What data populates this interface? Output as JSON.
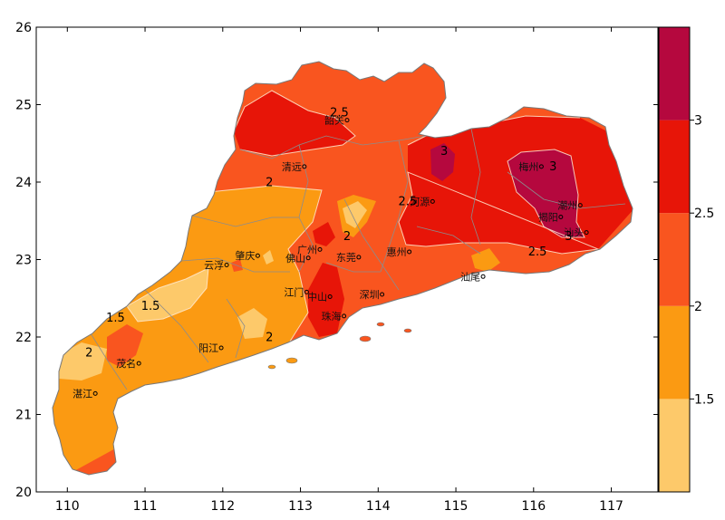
{
  "map": {
    "lon_ticks": [
      "110",
      "111",
      "112",
      "113",
      "114",
      "115",
      "116",
      "117"
    ],
    "lat_ticks": [
      "20",
      "21",
      "22",
      "23",
      "24",
      "25",
      "26"
    ],
    "lon_range": [
      109.6,
      117.6
    ],
    "lat_range": [
      20,
      26
    ],
    "cities": [
      {
        "name": "韶关",
        "lon": 113.6,
        "lat": 24.8
      },
      {
        "name": "清远",
        "lon": 113.05,
        "lat": 24.2
      },
      {
        "name": "河源",
        "lon": 114.7,
        "lat": 23.75
      },
      {
        "name": "梅州",
        "lon": 116.1,
        "lat": 24.2
      },
      {
        "name": "潮州",
        "lon": 116.6,
        "lat": 23.7
      },
      {
        "name": "揭阳",
        "lon": 116.35,
        "lat": 23.55
      },
      {
        "name": "汕头",
        "lon": 116.68,
        "lat": 23.35
      },
      {
        "name": "肇庆",
        "lon": 112.45,
        "lat": 23.05
      },
      {
        "name": "广州",
        "lon": 113.25,
        "lat": 23.13
      },
      {
        "name": "惠州",
        "lon": 114.4,
        "lat": 23.1
      },
      {
        "name": "云浮",
        "lon": 112.05,
        "lat": 22.93
      },
      {
        "name": "佛山",
        "lon": 113.1,
        "lat": 23.02
      },
      {
        "name": "东莞",
        "lon": 113.75,
        "lat": 23.03
      },
      {
        "name": "汕尾",
        "lon": 115.35,
        "lat": 22.78
      },
      {
        "name": "中山",
        "lon": 113.38,
        "lat": 22.52
      },
      {
        "name": "深圳",
        "lon": 114.05,
        "lat": 22.55
      },
      {
        "name": "江门",
        "lon": 113.08,
        "lat": 22.58
      },
      {
        "name": "珠海",
        "lon": 113.56,
        "lat": 22.27
      },
      {
        "name": "阳江",
        "lon": 111.98,
        "lat": 21.86
      },
      {
        "name": "茂名",
        "lon": 110.92,
        "lat": 21.66
      },
      {
        "name": "湛江",
        "lon": 110.36,
        "lat": 21.27
      }
    ],
    "contour_labels": [
      {
        "text": "2.5",
        "lon": 113.5,
        "lat": 24.85
      },
      {
        "text": "2",
        "lon": 112.6,
        "lat": 23.95
      },
      {
        "text": "2.5",
        "lon": 114.38,
        "lat": 23.7
      },
      {
        "text": "2",
        "lon": 113.6,
        "lat": 23.25
      },
      {
        "text": "3",
        "lon": 114.85,
        "lat": 24.35
      },
      {
        "text": "3",
        "lon": 116.25,
        "lat": 24.15
      },
      {
        "text": "2.5",
        "lon": 116.05,
        "lat": 23.05
      },
      {
        "text": "3",
        "lon": 116.45,
        "lat": 23.25
      },
      {
        "text": "1.5",
        "lon": 110.62,
        "lat": 22.2
      },
      {
        "text": "1.5",
        "lon": 111.07,
        "lat": 22.35
      },
      {
        "text": "2",
        "lon": 110.28,
        "lat": 21.75
      },
      {
        "text": "2",
        "lon": 112.6,
        "lat": 21.95
      }
    ],
    "colors": {
      "c1": "#fdc96a",
      "c2": "#fb9a12",
      "c3": "#f9551f",
      "c4": "#e71508",
      "c5": "#b5083e"
    }
  },
  "colorbar": {
    "labels": [
      "1.5",
      "2",
      "2.5",
      "3"
    ],
    "colors": [
      "#fdc96a",
      "#fb9a12",
      "#f9551f",
      "#e71508",
      "#b5083e"
    ]
  }
}
